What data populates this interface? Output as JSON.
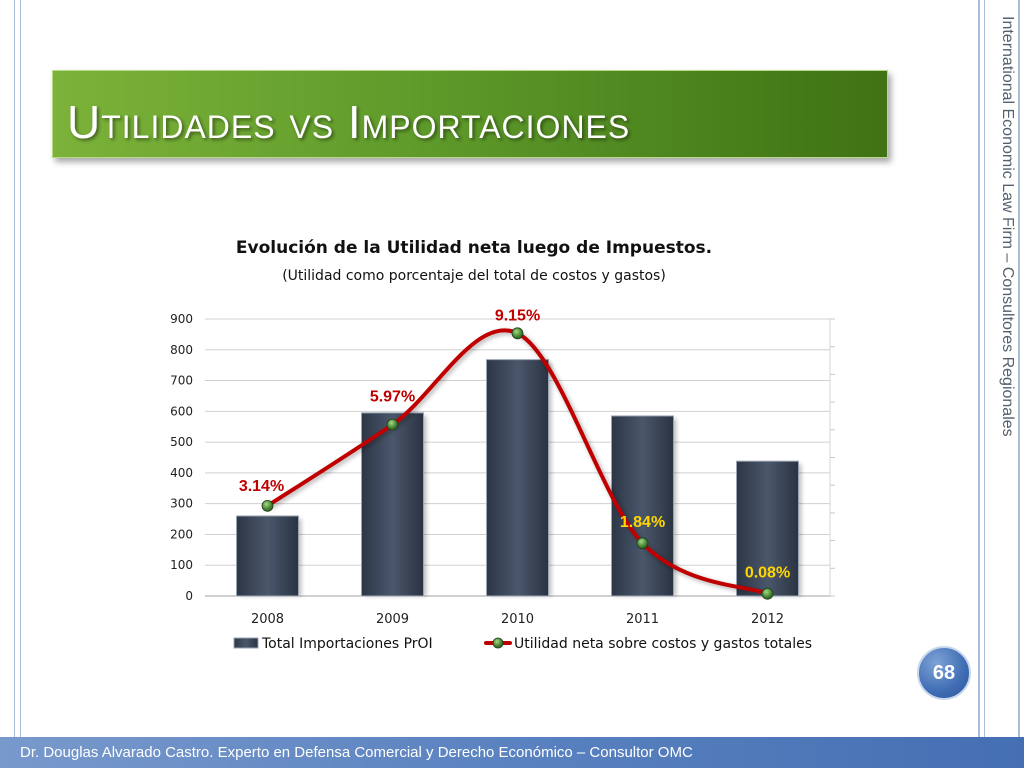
{
  "slide": {
    "title": "Utilidades vs Importaciones",
    "side_text": "International Economic Law Firm – Consultores Regionales",
    "page_number": "68",
    "footer": "Dr. Douglas Alvarado Castro. Experto en Defensa Comercial y Derecho Económico – Consultor OMC"
  },
  "chart_data": {
    "type": "bar",
    "title": "Evolución de la Utilidad neta luego de Impuestos.",
    "subtitle": "(Utilidad como porcentaje del total de costos y gastos)",
    "categories": [
      "2008",
      "2009",
      "2010",
      "2011",
      "2012"
    ],
    "ylim": [
      0,
      900
    ],
    "yticks": [
      "0",
      "100",
      "200",
      "300",
      "400",
      "500",
      "600",
      "700",
      "800",
      "900"
    ],
    "grid": true,
    "legend_position": "bottom",
    "series": [
      {
        "name": "Total Importaciones PrOI",
        "kind": "bar",
        "color": "#3a4658",
        "values": [
          260,
          595,
          768,
          585,
          438
        ]
      },
      {
        "name": "Utilidad neta sobre costos y gastos totales",
        "kind": "line",
        "color": "#c00000",
        "values": [
          3.14,
          5.97,
          9.15,
          1.84,
          0.08
        ],
        "labels": [
          "3.14%",
          "5.97%",
          "9.15%",
          "1.84%",
          "0.08%"
        ],
        "label_colors": [
          "#c00000",
          "#c00000",
          "#c00000",
          "#ffd700",
          "#ffd700"
        ]
      }
    ]
  },
  "colors": {
    "title_banner": "#5e9a2a",
    "footer": "#5a82c0",
    "badge": "#3f6db4"
  }
}
